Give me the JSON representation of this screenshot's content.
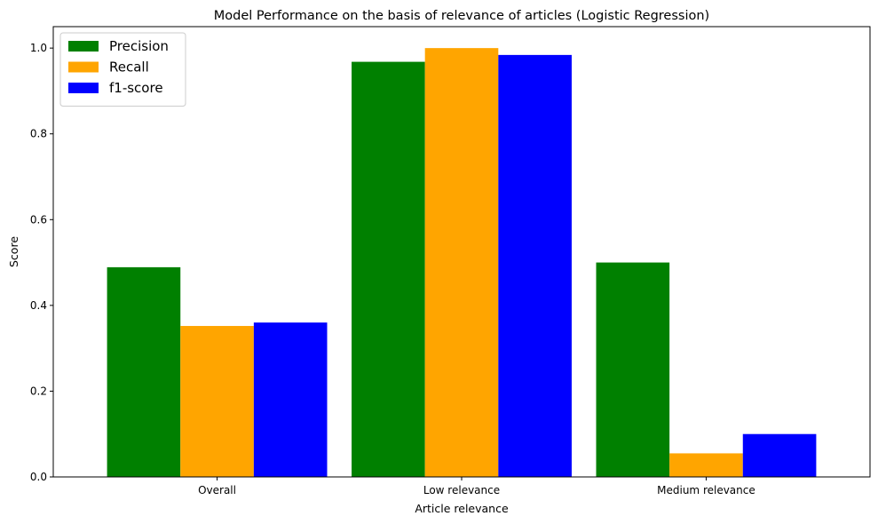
{
  "chart_data": {
    "type": "bar",
    "title": "Model Performance on the basis of relevance of articles (Logistic Regression)",
    "xlabel": "Article relevance",
    "ylabel": "Score",
    "categories": [
      "Overall",
      "Low relevance",
      "Medium relevance"
    ],
    "series": [
      {
        "name": "Precision",
        "color": "#008000",
        "values": [
          0.489,
          0.968,
          0.5
        ]
      },
      {
        "name": "Recall",
        "color": "#ffa500",
        "values": [
          0.352,
          1.0,
          0.055
        ]
      },
      {
        "name": "f1-score",
        "color": "#0000ff",
        "values": [
          0.36,
          0.984,
          0.1
        ]
      }
    ],
    "ylim": [
      0,
      1.05
    ],
    "yticks": [
      0.0,
      0.2,
      0.4,
      0.6,
      0.8,
      1.0
    ],
    "ytick_labels": [
      "0.0",
      "0.2",
      "0.4",
      "0.6",
      "0.8",
      "1.0"
    ],
    "grid": false,
    "legend_position": "top-left"
  }
}
